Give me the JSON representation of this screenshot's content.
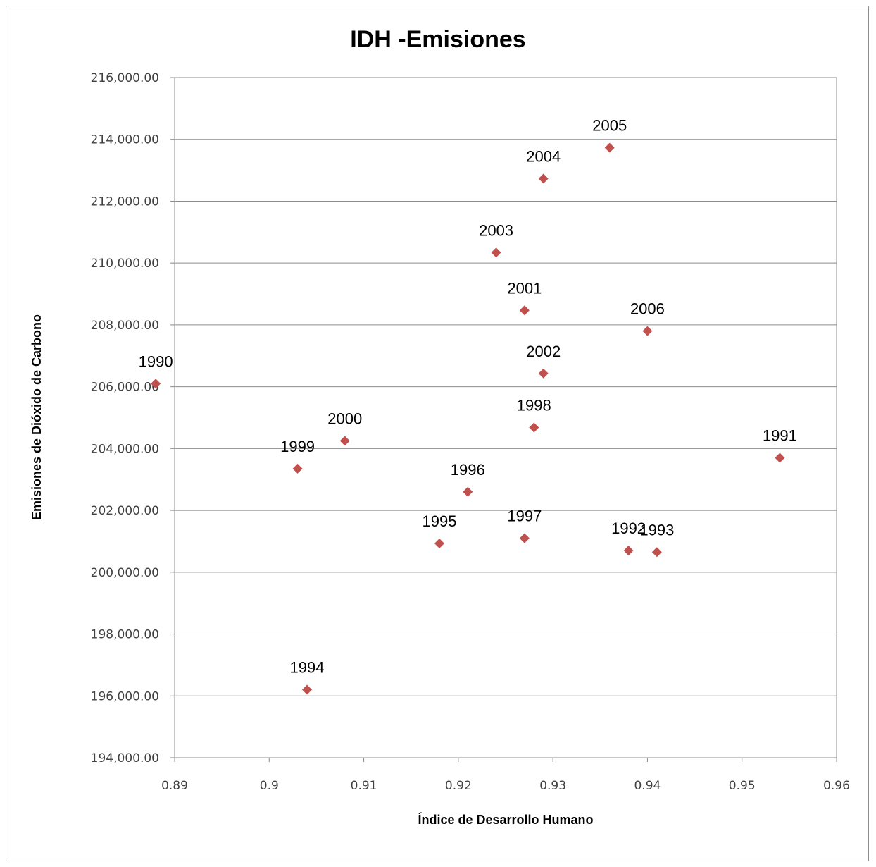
{
  "chart_data": {
    "type": "scatter",
    "title": "IDH -Emisiones",
    "xlabel": "Índice de Desarrollo Humano",
    "ylabel": "Emisiones de Dióxido de Carbono",
    "xlim": [
      0.89,
      0.96
    ],
    "ylim": [
      194000,
      216000
    ],
    "x_ticks": [
      "0.89",
      "0.9",
      "0.91",
      "0.92",
      "0.93",
      "0.94",
      "0.95",
      "0.96"
    ],
    "y_ticks": [
      "194,000.00",
      "196,000.00",
      "198,000.00",
      "200,000.00",
      "202,000.00",
      "204,000.00",
      "206,000.00",
      "208,000.00",
      "210,000.00",
      "212,000.00",
      "214,000.00",
      "216,000.00"
    ],
    "grid": "horizontal",
    "legend": "none",
    "marker": "diamond",
    "marker_color": "#c0504d",
    "points": [
      {
        "label": "1990",
        "x": 0.888,
        "y": 206100
      },
      {
        "label": "1991",
        "x": 0.954,
        "y": 203700
      },
      {
        "label": "1992",
        "x": 0.938,
        "y": 200700
      },
      {
        "label": "1993",
        "x": 0.941,
        "y": 200650
      },
      {
        "label": "1994",
        "x": 0.904,
        "y": 196200
      },
      {
        "label": "1995",
        "x": 0.918,
        "y": 200930
      },
      {
        "label": "1996",
        "x": 0.921,
        "y": 202600
      },
      {
        "label": "1997",
        "x": 0.927,
        "y": 201100
      },
      {
        "label": "1998",
        "x": 0.928,
        "y": 204680
      },
      {
        "label": "1999",
        "x": 0.903,
        "y": 203350
      },
      {
        "label": "2000",
        "x": 0.908,
        "y": 204250
      },
      {
        "label": "2001",
        "x": 0.927,
        "y": 208470
      },
      {
        "label": "2002",
        "x": 0.929,
        "y": 206430
      },
      {
        "label": "2003",
        "x": 0.924,
        "y": 210340
      },
      {
        "label": "2004",
        "x": 0.929,
        "y": 212730
      },
      {
        "label": "2005",
        "x": 0.936,
        "y": 213730
      },
      {
        "label": "2006",
        "x": 0.94,
        "y": 207800
      }
    ]
  }
}
